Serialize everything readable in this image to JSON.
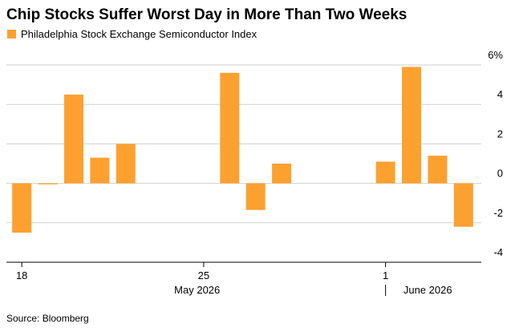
{
  "chart_data": {
    "type": "bar",
    "title": "Chip Stocks Suffer Worst Day in More Than Two Weeks",
    "series": [
      {
        "name": "Philadelphia Stock Exchange Semiconductor Index",
        "color": "#fca12f",
        "values": [
          -2.5,
          -0.05,
          4.5,
          1.3,
          2.0,
          null,
          null,
          null,
          5.6,
          -1.35,
          1.0,
          null,
          null,
          null,
          1.1,
          5.9,
          1.4,
          -2.2
        ]
      }
    ],
    "categories": [
      "18",
      null,
      null,
      null,
      null,
      null,
      null,
      "25",
      null,
      null,
      null,
      null,
      null,
      null,
      "1",
      null,
      null,
      null
    ],
    "month_groups": [
      {
        "label": "May 2026",
        "start": 0
      },
      {
        "label": "June 2026",
        "start": 14
      }
    ],
    "ylim": [
      -4,
      6
    ],
    "yticks": [
      -4,
      -2,
      0,
      2,
      4,
      {
        "value": 6,
        "label": "6%"
      }
    ],
    "grid": true,
    "source": "Source: Bloomberg"
  }
}
